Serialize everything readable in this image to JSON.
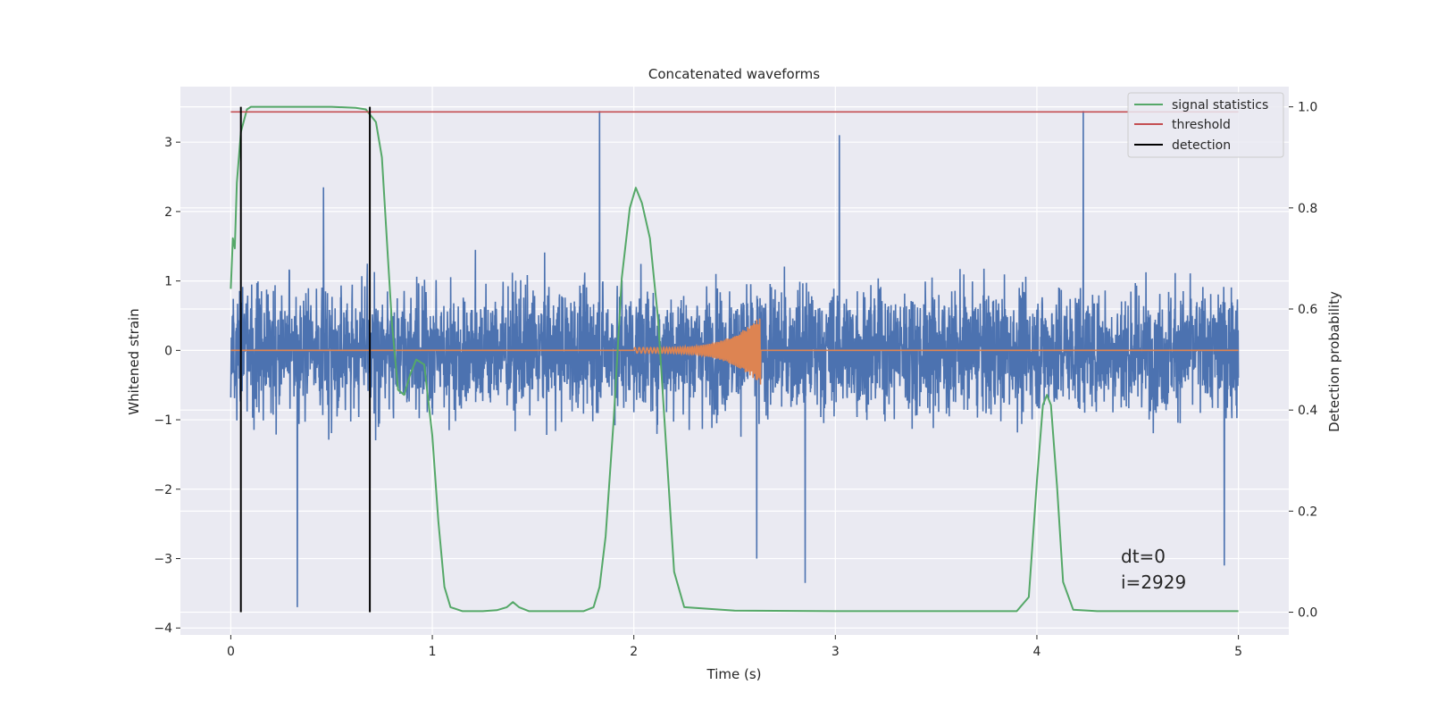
{
  "chart_data": {
    "type": "line",
    "title": "Concatenated waveforms",
    "xlabel": "Time (s)",
    "ylabel_left": "Whitened strain",
    "ylabel_right": "Detection probability",
    "xlim": [
      -0.25,
      5.25
    ],
    "ylim_left": [
      -4.1,
      3.8
    ],
    "ylim_right": [
      -0.045,
      1.04
    ],
    "xticks": [
      0,
      1,
      2,
      3,
      4,
      5
    ],
    "xtick_labels": [
      "0",
      "1",
      "2",
      "3",
      "4",
      "5"
    ],
    "yticks_left": [
      -4,
      -3,
      -2,
      -1,
      0,
      1,
      2,
      3
    ],
    "ytick_labels_left": [
      "−4",
      "−3",
      "−2",
      "−1",
      "0",
      "1",
      "2",
      "3"
    ],
    "yticks_right": [
      0.0,
      0.2,
      0.4,
      0.6,
      0.8,
      1.0
    ],
    "ytick_labels_right": [
      "0.0",
      "0.2",
      "0.4",
      "0.6",
      "0.8",
      "1.0"
    ],
    "grid": true,
    "legend_position": "top-right",
    "annotation_lines": [
      "dt=0",
      "i=2929"
    ],
    "annotation_position": [
      4.5,
      -3.3
    ],
    "series": [
      {
        "name": "",
        "kind": "noise-strain",
        "axis": "left",
        "color": "#4c72b0",
        "x_range": [
          0,
          5
        ],
        "typical_abs_max": 2.3,
        "notable_peaks": [
          {
            "x": 0.33,
            "y": -3.7
          },
          {
            "x": 0.46,
            "y": 2.35
          },
          {
            "x": 1.83,
            "y": 3.45
          },
          {
            "x": 2.61,
            "y": -3.0
          },
          {
            "x": 2.85,
            "y": -3.35
          },
          {
            "x": 3.02,
            "y": 3.1
          },
          {
            "x": 4.23,
            "y": 3.45
          },
          {
            "x": 4.93,
            "y": -3.1
          }
        ]
      },
      {
        "name": "",
        "kind": "chirp",
        "axis": "left",
        "color": "#dd8452",
        "x_range": [
          0,
          5
        ],
        "chirp_start": 2.0,
        "chirp_end": 2.63,
        "chirp_peak": 0.5
      },
      {
        "name": "signal statistics",
        "axis": "right",
        "color": "#55a868",
        "x": [
          0.0,
          0.01,
          0.02,
          0.03,
          0.05,
          0.08,
          0.1,
          0.15,
          0.3,
          0.5,
          0.62,
          0.67,
          0.72,
          0.75,
          0.78,
          0.8,
          0.83,
          0.86,
          0.89,
          0.92,
          0.96,
          1.0,
          1.03,
          1.06,
          1.09,
          1.15,
          1.25,
          1.32,
          1.37,
          1.4,
          1.43,
          1.48,
          1.6,
          1.75,
          1.8,
          1.83,
          1.86,
          1.9,
          1.94,
          1.98,
          2.01,
          2.04,
          2.08,
          2.12,
          2.16,
          2.2,
          2.25,
          2.5,
          3.0,
          3.5,
          3.9,
          3.96,
          4.0,
          4.03,
          4.05,
          4.07,
          4.1,
          4.13,
          4.18,
          4.3,
          4.6,
          5.0
        ],
        "y": [
          0.64,
          0.74,
          0.72,
          0.85,
          0.95,
          0.995,
          1.0,
          1.0,
          1.0,
          1.0,
          0.998,
          0.995,
          0.97,
          0.9,
          0.7,
          0.57,
          0.44,
          0.43,
          0.47,
          0.5,
          0.49,
          0.35,
          0.18,
          0.05,
          0.01,
          0.002,
          0.002,
          0.004,
          0.01,
          0.02,
          0.01,
          0.002,
          0.002,
          0.002,
          0.01,
          0.05,
          0.15,
          0.38,
          0.66,
          0.8,
          0.84,
          0.81,
          0.74,
          0.58,
          0.33,
          0.08,
          0.01,
          0.003,
          0.002,
          0.002,
          0.002,
          0.03,
          0.26,
          0.41,
          0.43,
          0.41,
          0.25,
          0.06,
          0.005,
          0.002,
          0.002,
          0.002
        ]
      },
      {
        "name": "threshold",
        "axis": "right",
        "color": "#c44e52",
        "x": [
          0,
          5
        ],
        "y": [
          0.99,
          0.99
        ]
      },
      {
        "name": "detection",
        "axis": "right",
        "color": "#000000",
        "vlines": [
          0.05,
          0.69
        ],
        "y_range": [
          0.0,
          1.0
        ]
      }
    ]
  }
}
